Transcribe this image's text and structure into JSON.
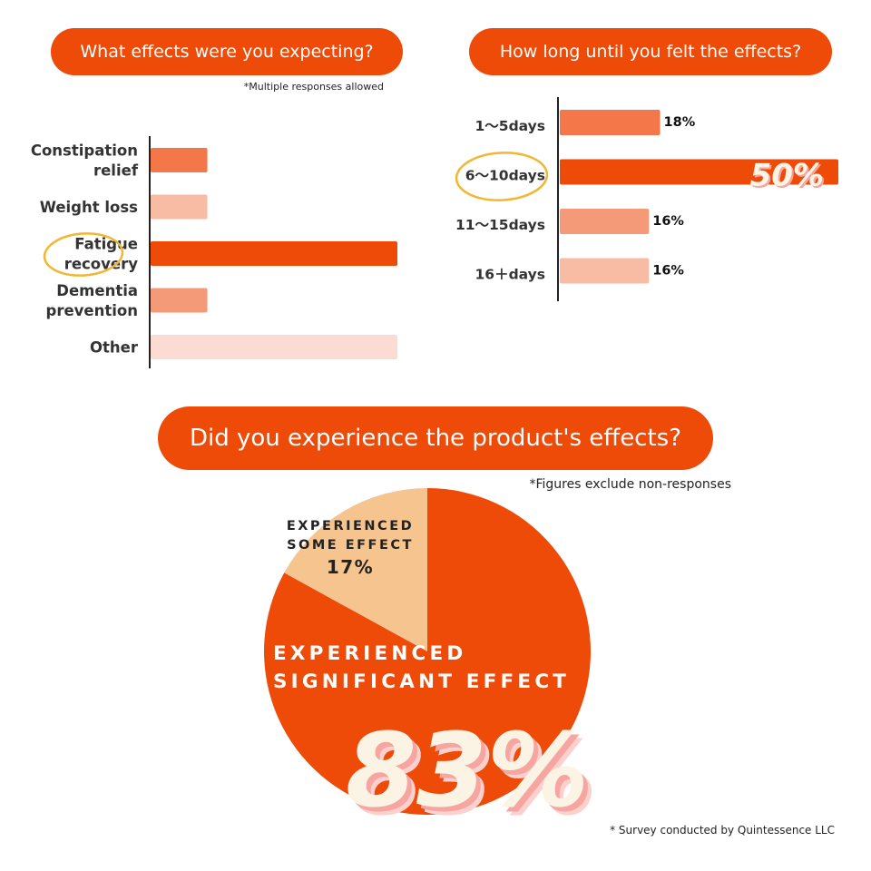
{
  "chart_data": [
    {
      "type": "bar",
      "title": "What effects were you expecting?",
      "note": "*Multiple responses allowed",
      "categories": [
        "Constipation relief",
        "Weight loss",
        "Fatigue recovery",
        "Dementia prevention",
        "Other"
      ],
      "label_lines": [
        [
          "Constipation",
          "relief"
        ],
        [
          "Weight loss"
        ],
        [
          "Fatigue",
          "recovery"
        ],
        [
          "Dementia",
          "prevention"
        ],
        [
          "Other"
        ]
      ],
      "values": [
        23,
        23,
        100,
        23,
        100
      ],
      "colors": [
        "#f4774a",
        "#f8bba4",
        "#ee4a08",
        "#f49a78",
        "#fcdcd2"
      ],
      "highlighted": "Fatigue recovery",
      "xlim": [
        0,
        100
      ]
    },
    {
      "type": "bar",
      "title": "How long until you felt the effects?",
      "categories": [
        "1〜5days",
        "6〜10days",
        "11〜15days",
        "16＋days"
      ],
      "values": [
        18,
        50,
        16,
        16
      ],
      "value_labels": [
        "18%",
        "50%",
        "16%",
        "16%"
      ],
      "colors": [
        "#f4774a",
        "#ee4a08",
        "#f49a78",
        "#f8bba4"
      ],
      "highlighted": "6〜10days",
      "xlim": [
        0,
        50
      ]
    },
    {
      "type": "pie",
      "title": "Did you experience the product's effects?",
      "note": "*Figures exclude non-responses",
      "slices": [
        {
          "label_lines": [
            "EXPERIENCED",
            "SIGNIFICANT EFFECT"
          ],
          "value": 83,
          "value_label": "83%",
          "color": "#ee4a08"
        },
        {
          "label_lines": [
            "EXPERIENCED",
            "SOME EFFECT"
          ],
          "value": 17,
          "value_label": "17%",
          "color": "#f6c48e"
        }
      ]
    }
  ],
  "footnote": "* Survey conducted by Quintessence LLC",
  "colors": {
    "accent": "#ee4a08",
    "highlight_circle": "#f2b632",
    "big_number": "#fbf3e4",
    "big_number_shadow": "#f6a5a0"
  }
}
